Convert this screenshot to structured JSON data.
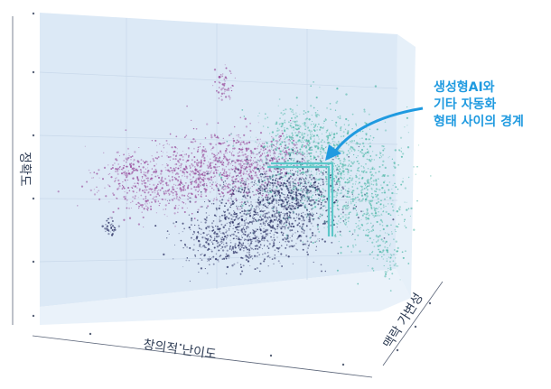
{
  "chart_data": {
    "type": "scatter",
    "projection": "3d",
    "title": "",
    "axes": {
      "x_label": "창의적 난이도",
      "y_label": "맥락 가변성",
      "z_label": "정확도"
    },
    "grid": true,
    "legend": "none",
    "series": [
      {
        "color": "#9a4f9d",
        "description_cluster": "upper-left"
      },
      {
        "color": "#4fb8a8",
        "description_cluster": "upper-right"
      },
      {
        "color": "#2a2f63",
        "description_cluster": "lower-center"
      }
    ],
    "annotation": {
      "text_lines": [
        "생성형AI와",
        "기타 자동화",
        "형태 사이의 경계"
      ],
      "color": "#1f9ae0",
      "boundary_color": "#5cc7c9"
    }
  }
}
